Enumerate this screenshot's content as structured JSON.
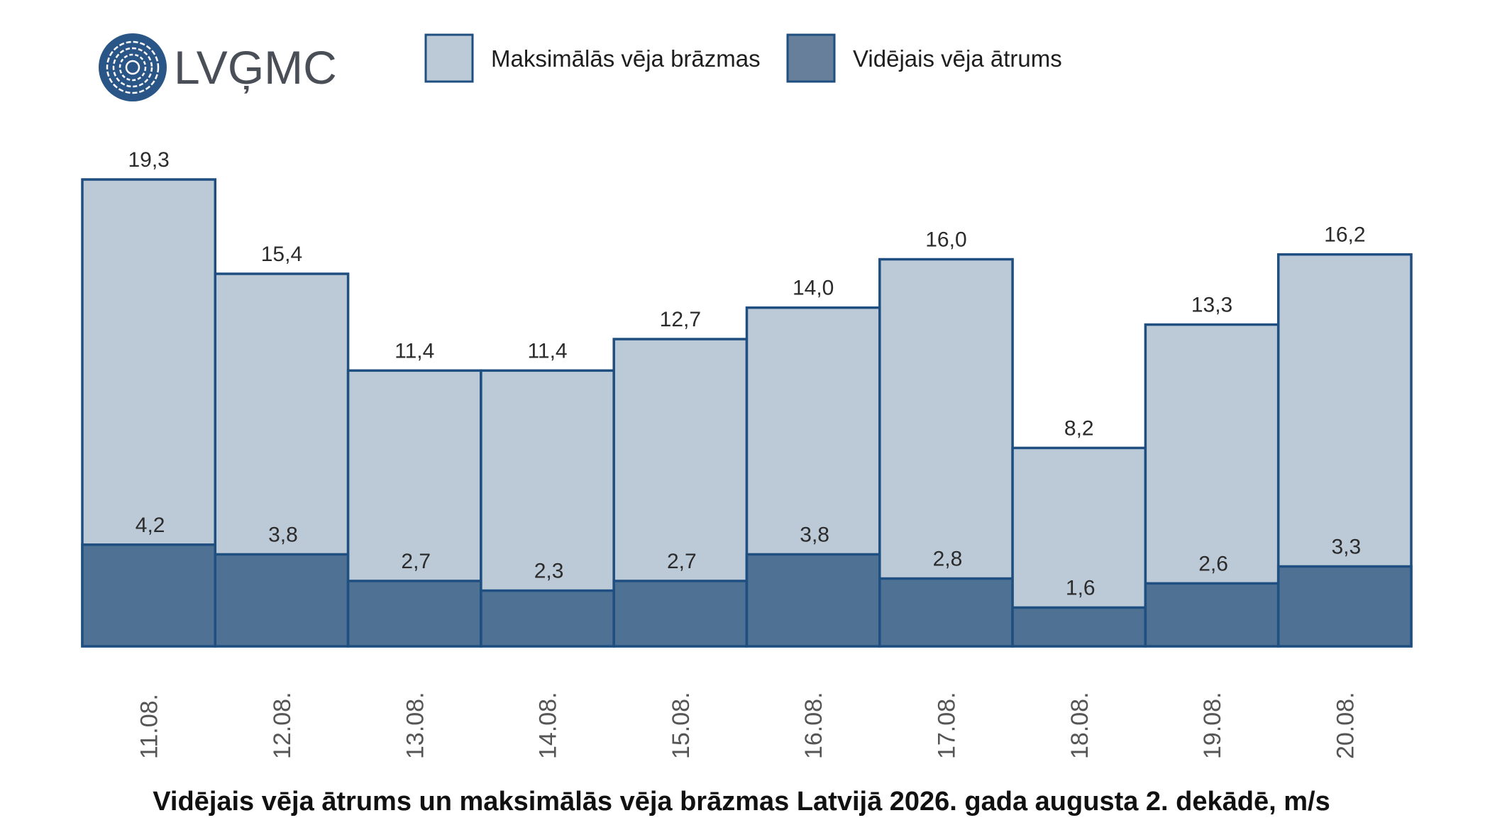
{
  "logo": {
    "text": "LVĢMC",
    "icon": "lvgmc-swirl-logo-icon",
    "color": "#2a5687"
  },
  "legend": {
    "items": [
      {
        "label": "Maksimālās vēja brāzmas",
        "color": "#bccad8"
      },
      {
        "label": "Vidējais vēja ātrums",
        "color": "#687f9c"
      }
    ]
  },
  "title": "Vidējais vēja ātrums un maksimālās vēja brāzmas Latvijā 2026. gada augusta 2. dekādē, m/s",
  "colors": {
    "max_fill": "#bccad8",
    "avg_fill": "#4f7194",
    "outline": "#1f4f80"
  },
  "chart_data": {
    "type": "bar",
    "categories": [
      "11.08.",
      "12.08.",
      "13.08.",
      "14.08.",
      "15.08.",
      "16.08.",
      "17.08.",
      "18.08.",
      "19.08.",
      "20.08."
    ],
    "series": [
      {
        "name": "Maksimālās vēja brāzmas",
        "values": [
          19.3,
          15.4,
          11.4,
          11.4,
          12.7,
          14.0,
          16.0,
          8.2,
          13.3,
          16.2
        ],
        "labels": [
          "19,3",
          "15,4",
          "11,4",
          "11,4",
          "12,7",
          "14,0",
          "16,0",
          "8,2",
          "13,3",
          "16,2"
        ]
      },
      {
        "name": "Vidējais vēja ātrums",
        "values": [
          4.2,
          3.8,
          2.7,
          2.3,
          2.7,
          3.8,
          2.8,
          1.6,
          2.6,
          3.3
        ],
        "labels": [
          "4,2",
          "3,8",
          "2,7",
          "2,3",
          "2,7",
          "3,8",
          "2,8",
          "1,6",
          "2,6",
          "3,3"
        ]
      }
    ],
    "ylim": [
      0,
      19.3
    ],
    "grid": false,
    "legend_position": "top"
  }
}
